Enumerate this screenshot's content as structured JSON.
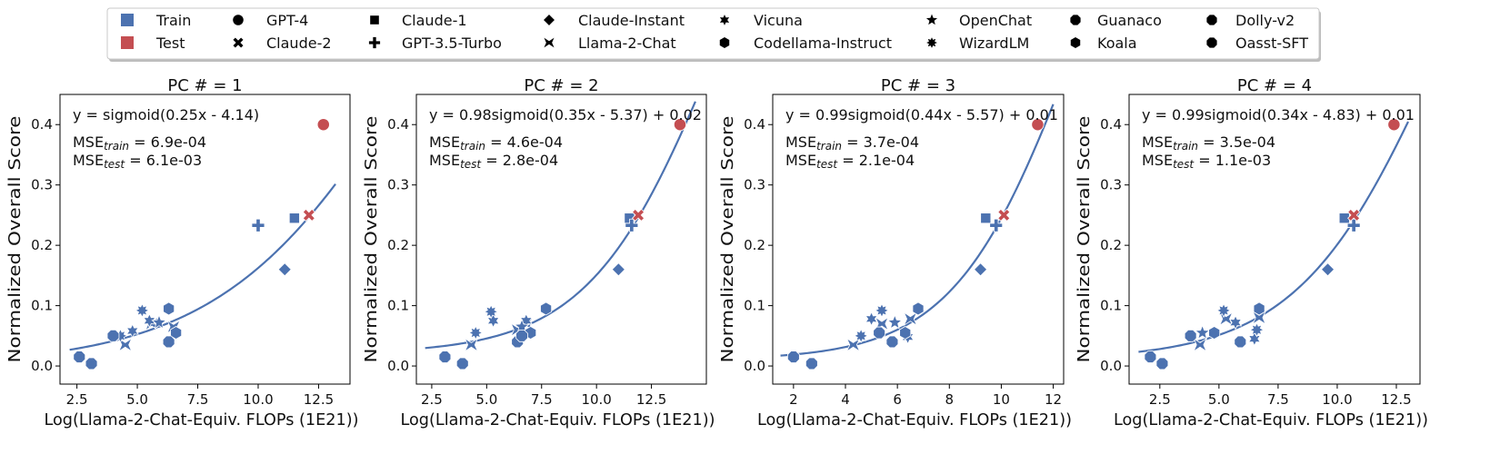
{
  "colors": {
    "train": "#4c72b0",
    "test": "#c44e52",
    "line": "#4c72b0"
  },
  "legend": {
    "sets": [
      {
        "label": "Train",
        "color": "#4c72b0"
      },
      {
        "label": "Test",
        "color": "#c44e52"
      }
    ],
    "models": [
      {
        "label": "GPT-4",
        "marker": "circle"
      },
      {
        "label": "Claude-2",
        "marker": "x"
      },
      {
        "label": "Claude-1",
        "marker": "square"
      },
      {
        "label": "GPT-3.5-Turbo",
        "marker": "plus"
      },
      {
        "label": "Claude-Instant",
        "marker": "diamond"
      },
      {
        "label": "Llama-2-Chat",
        "marker": "bowtie"
      },
      {
        "label": "Vicuna",
        "marker": "star6"
      },
      {
        "label": "Codellama-Instruct",
        "marker": "hexagon"
      },
      {
        "label": "OpenChat",
        "marker": "star5"
      },
      {
        "label": "WizardLM",
        "marker": "star8"
      },
      {
        "label": "Guanaco",
        "marker": "octagon"
      },
      {
        "label": "Koala",
        "marker": "hexagon"
      },
      {
        "label": "Dolly-v2",
        "marker": "octagon"
      },
      {
        "label": "Oasst-SFT",
        "marker": "octagon"
      }
    ]
  },
  "chart_data": [
    {
      "type": "scatter",
      "title": "PC # = 1",
      "xlabel": "Log(Llama-2-Chat-Equiv. FLOPs (1E21))",
      "ylabel": "Normalized Overall Score",
      "xlim": [
        1.8,
        13.8
      ],
      "ylim": [
        -0.03,
        0.45
      ],
      "xticks": [
        2.5,
        5.0,
        7.5,
        10.0,
        12.5
      ],
      "xtick_labels": [
        "2.5",
        "5.0",
        "7.5",
        "10.0",
        "12.5"
      ],
      "yticks": [
        0.0,
        0.1,
        0.2,
        0.3,
        0.4
      ],
      "ytick_labels": [
        "0.0",
        "0.1",
        "0.2",
        "0.3",
        "0.4"
      ],
      "fit": {
        "a": 1.0,
        "b": 0.25,
        "c": -4.14,
        "d": 0.0,
        "xrange": [
          2.2,
          13.2
        ]
      },
      "annotations": {
        "formula": "y = sigmoid(0.25x - 4.14)",
        "mse_train": " = 6.9e-04",
        "mse_test": " = 6.1e-03"
      },
      "points": [
        {
          "model": "GPT-4",
          "set": "test",
          "x": 12.7,
          "y": 0.4
        },
        {
          "model": "Claude-2",
          "set": "test",
          "x": 12.1,
          "y": 0.25
        },
        {
          "model": "Claude-1",
          "set": "train",
          "x": 11.5,
          "y": 0.245
        },
        {
          "model": "GPT-3.5-Turbo",
          "set": "train",
          "x": 10.0,
          "y": 0.233
        },
        {
          "model": "Claude-Instant",
          "set": "train",
          "x": 11.1,
          "y": 0.16
        },
        {
          "model": "Llama-2-Chat",
          "set": "train",
          "x": 6.5,
          "y": 0.065
        },
        {
          "model": "Llama-2-Chat",
          "set": "train",
          "x": 5.6,
          "y": 0.07
        },
        {
          "model": "Llama-2-Chat",
          "set": "train",
          "x": 4.5,
          "y": 0.035
        },
        {
          "model": "Vicuna",
          "set": "train",
          "x": 5.5,
          "y": 0.075
        },
        {
          "model": "Vicuna",
          "set": "train",
          "x": 4.8,
          "y": 0.058
        },
        {
          "model": "OpenChat",
          "set": "train",
          "x": 5.9,
          "y": 0.072
        },
        {
          "model": "WizardLM",
          "set": "train",
          "x": 5.2,
          "y": 0.092
        },
        {
          "model": "WizardLM",
          "set": "train",
          "x": 4.3,
          "y": 0.05
        },
        {
          "model": "Codellama-Instruct",
          "set": "train",
          "x": 6.3,
          "y": 0.095
        },
        {
          "model": "Koala",
          "set": "train",
          "x": 6.6,
          "y": 0.055
        },
        {
          "model": "Guanaco",
          "set": "train",
          "x": 6.3,
          "y": 0.04
        },
        {
          "model": "Guanaco",
          "set": "train",
          "x": 4.0,
          "y": 0.05
        },
        {
          "model": "Dolly-v2",
          "set": "train",
          "x": 2.6,
          "y": 0.015
        },
        {
          "model": "Oasst-SFT",
          "set": "train",
          "x": 3.1,
          "y": 0.004
        }
      ]
    },
    {
      "type": "scatter",
      "title": "PC # = 2",
      "xlabel": "Log(Llama-2-Chat-Equiv. FLOPs (1E21))",
      "ylabel": "Normalized Overall Score",
      "xlim": [
        1.8,
        15.0
      ],
      "ylim": [
        -0.03,
        0.45
      ],
      "xticks": [
        2.5,
        5.0,
        7.5,
        10.0,
        12.5
      ],
      "xtick_labels": [
        "2.5",
        "5.0",
        "7.5",
        "10.0",
        "12.5"
      ],
      "yticks": [
        0.0,
        0.1,
        0.2,
        0.3,
        0.4
      ],
      "ytick_labels": [
        "0.0",
        "0.1",
        "0.2",
        "0.3",
        "0.4"
      ],
      "fit": {
        "a": 0.98,
        "b": 0.35,
        "c": -5.37,
        "d": 0.02,
        "xrange": [
          2.2,
          14.5
        ]
      },
      "annotations": {
        "formula": "y = 0.98sigmoid(0.35x - 5.37) + 0.02",
        "mse_train": " = 4.6e-04",
        "mse_test": " = 2.8e-04"
      },
      "points": [
        {
          "model": "GPT-4",
          "set": "test",
          "x": 13.8,
          "y": 0.4
        },
        {
          "model": "Claude-2",
          "set": "test",
          "x": 11.9,
          "y": 0.25
        },
        {
          "model": "Claude-1",
          "set": "train",
          "x": 11.5,
          "y": 0.245
        },
        {
          "model": "GPT-3.5-Turbo",
          "set": "train",
          "x": 11.6,
          "y": 0.233
        },
        {
          "model": "Claude-Instant",
          "set": "train",
          "x": 11.0,
          "y": 0.16
        },
        {
          "model": "Llama-2-Chat",
          "set": "train",
          "x": 6.8,
          "y": 0.07
        },
        {
          "model": "Llama-2-Chat",
          "set": "train",
          "x": 6.4,
          "y": 0.06
        },
        {
          "model": "Llama-2-Chat",
          "set": "train",
          "x": 4.3,
          "y": 0.035
        },
        {
          "model": "Vicuna",
          "set": "train",
          "x": 5.3,
          "y": 0.075
        },
        {
          "model": "Vicuna",
          "set": "train",
          "x": 6.8,
          "y": 0.075
        },
        {
          "model": "OpenChat",
          "set": "train",
          "x": 6.6,
          "y": 0.065
        },
        {
          "model": "WizardLM",
          "set": "train",
          "x": 5.2,
          "y": 0.09
        },
        {
          "model": "WizardLM",
          "set": "train",
          "x": 4.5,
          "y": 0.055
        },
        {
          "model": "Codellama-Instruct",
          "set": "train",
          "x": 7.7,
          "y": 0.095
        },
        {
          "model": "Koala",
          "set": "train",
          "x": 7.0,
          "y": 0.055
        },
        {
          "model": "Guanaco",
          "set": "train",
          "x": 6.4,
          "y": 0.04
        },
        {
          "model": "Guanaco",
          "set": "train",
          "x": 6.6,
          "y": 0.05
        },
        {
          "model": "Dolly-v2",
          "set": "train",
          "x": 3.1,
          "y": 0.015
        },
        {
          "model": "Oasst-SFT",
          "set": "train",
          "x": 3.9,
          "y": 0.004
        }
      ]
    },
    {
      "type": "scatter",
      "title": "PC # = 3",
      "xlabel": "Log(Llama-2-Chat-Equiv. FLOPs (1E21))",
      "ylabel": "Normalized Overall Score",
      "xlim": [
        1.2,
        12.4
      ],
      "ylim": [
        -0.03,
        0.45
      ],
      "xticks": [
        2,
        4,
        6,
        8,
        10,
        12
      ],
      "xtick_labels": [
        "2",
        "4",
        "6",
        "8",
        "10",
        "12"
      ],
      "yticks": [
        0.0,
        0.1,
        0.2,
        0.3,
        0.4
      ],
      "ytick_labels": [
        "0.0",
        "0.1",
        "0.2",
        "0.3",
        "0.4"
      ],
      "fit": {
        "a": 0.99,
        "b": 0.44,
        "c": -5.57,
        "d": 0.01,
        "xrange": [
          1.5,
          12.0
        ]
      },
      "annotations": {
        "formula": "y = 0.99sigmoid(0.44x - 5.57) + 0.01",
        "mse_train": " = 3.7e-04",
        "mse_test": " = 2.1e-04"
      },
      "points": [
        {
          "model": "GPT-4",
          "set": "test",
          "x": 11.4,
          "y": 0.4
        },
        {
          "model": "Claude-2",
          "set": "test",
          "x": 10.1,
          "y": 0.25
        },
        {
          "model": "Claude-1",
          "set": "train",
          "x": 9.4,
          "y": 0.245
        },
        {
          "model": "GPT-3.5-Turbo",
          "set": "train",
          "x": 9.8,
          "y": 0.233
        },
        {
          "model": "Claude-Instant",
          "set": "train",
          "x": 9.2,
          "y": 0.16
        },
        {
          "model": "Llama-2-Chat",
          "set": "train",
          "x": 6.5,
          "y": 0.078
        },
        {
          "model": "Llama-2-Chat",
          "set": "train",
          "x": 5.4,
          "y": 0.07
        },
        {
          "model": "Llama-2-Chat",
          "set": "train",
          "x": 4.3,
          "y": 0.035
        },
        {
          "model": "Vicuna",
          "set": "train",
          "x": 5.0,
          "y": 0.078
        },
        {
          "model": "Vicuna",
          "set": "train",
          "x": 6.4,
          "y": 0.048
        },
        {
          "model": "OpenChat",
          "set": "train",
          "x": 5.9,
          "y": 0.072
        },
        {
          "model": "WizardLM",
          "set": "train",
          "x": 5.4,
          "y": 0.092
        },
        {
          "model": "WizardLM",
          "set": "train",
          "x": 4.6,
          "y": 0.05
        },
        {
          "model": "Codellama-Instruct",
          "set": "train",
          "x": 6.8,
          "y": 0.095
        },
        {
          "model": "Koala",
          "set": "train",
          "x": 6.3,
          "y": 0.055
        },
        {
          "model": "Guanaco",
          "set": "train",
          "x": 5.8,
          "y": 0.04
        },
        {
          "model": "Guanaco",
          "set": "train",
          "x": 5.3,
          "y": 0.055
        },
        {
          "model": "Dolly-v2",
          "set": "train",
          "x": 2.0,
          "y": 0.015
        },
        {
          "model": "Oasst-SFT",
          "set": "train",
          "x": 2.7,
          "y": 0.004
        }
      ]
    },
    {
      "type": "scatter",
      "title": "PC # = 4",
      "xlabel": "Log(Llama-2-Chat-Equiv. FLOPs (1E21))",
      "ylabel": "Normalized Overall Score",
      "xlim": [
        1.2,
        13.5
      ],
      "ylim": [
        -0.03,
        0.45
      ],
      "xticks": [
        2.5,
        5.0,
        7.5,
        10.0,
        12.5
      ],
      "xtick_labels": [
        "2.5",
        "5.0",
        "7.5",
        "10.0",
        "12.5"
      ],
      "yticks": [
        0.0,
        0.1,
        0.2,
        0.3,
        0.4
      ],
      "ytick_labels": [
        "0.0",
        "0.1",
        "0.2",
        "0.3",
        "0.4"
      ],
      "fit": {
        "a": 0.99,
        "b": 0.34,
        "c": -4.83,
        "d": 0.01,
        "xrange": [
          1.6,
          13.0
        ]
      },
      "annotations": {
        "formula": "y = 0.99sigmoid(0.34x - 4.83) + 0.01",
        "mse_train": " = 3.5e-04",
        "mse_test": " = 1.1e-03"
      },
      "points": [
        {
          "model": "GPT-4",
          "set": "test",
          "x": 12.4,
          "y": 0.4
        },
        {
          "model": "Claude-2",
          "set": "test",
          "x": 10.7,
          "y": 0.25
        },
        {
          "model": "Claude-1",
          "set": "train",
          "x": 10.3,
          "y": 0.245
        },
        {
          "model": "GPT-3.5-Turbo",
          "set": "train",
          "x": 10.7,
          "y": 0.233
        },
        {
          "model": "Claude-Instant",
          "set": "train",
          "x": 9.6,
          "y": 0.16
        },
        {
          "model": "Llama-2-Chat",
          "set": "train",
          "x": 5.3,
          "y": 0.078
        },
        {
          "model": "Llama-2-Chat",
          "set": "train",
          "x": 4.2,
          "y": 0.035
        },
        {
          "model": "Llama-2-Chat",
          "set": "train",
          "x": 6.7,
          "y": 0.08
        },
        {
          "model": "Vicuna",
          "set": "train",
          "x": 5.7,
          "y": 0.072
        },
        {
          "model": "Vicuna",
          "set": "train",
          "x": 6.5,
          "y": 0.045
        },
        {
          "model": "OpenChat",
          "set": "train",
          "x": 4.3,
          "y": 0.055
        },
        {
          "model": "WizardLM",
          "set": "train",
          "x": 5.2,
          "y": 0.092
        },
        {
          "model": "WizardLM",
          "set": "train",
          "x": 6.6,
          "y": 0.06
        },
        {
          "model": "Codellama-Instruct",
          "set": "train",
          "x": 6.7,
          "y": 0.095
        },
        {
          "model": "Koala",
          "set": "train",
          "x": 4.8,
          "y": 0.055
        },
        {
          "model": "Guanaco",
          "set": "train",
          "x": 5.9,
          "y": 0.04
        },
        {
          "model": "Guanaco",
          "set": "train",
          "x": 3.8,
          "y": 0.05
        },
        {
          "model": "Dolly-v2",
          "set": "train",
          "x": 2.1,
          "y": 0.015
        },
        {
          "model": "Oasst-SFT",
          "set": "train",
          "x": 2.6,
          "y": 0.004
        }
      ]
    }
  ]
}
